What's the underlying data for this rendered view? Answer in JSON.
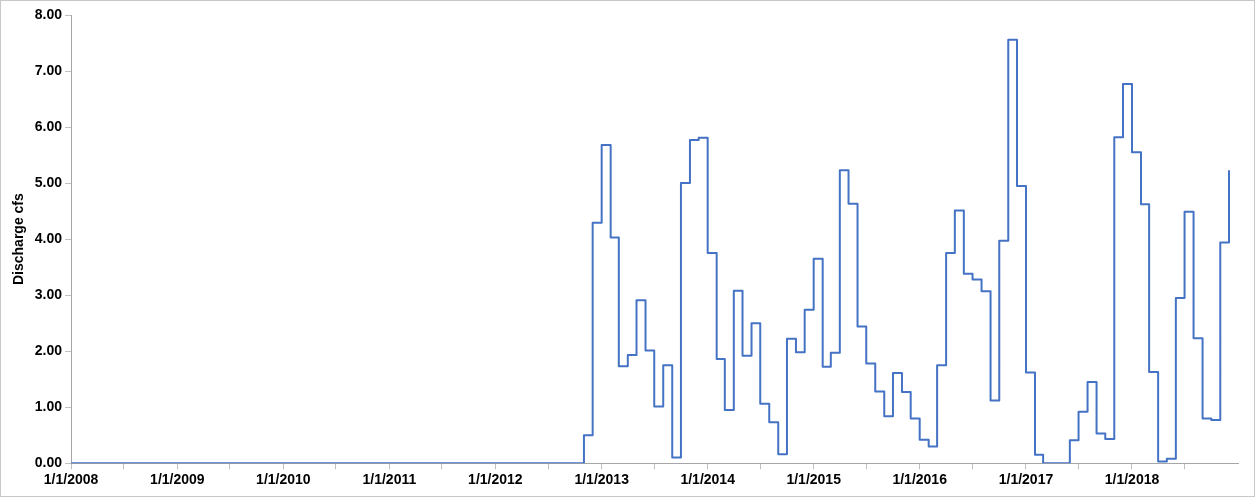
{
  "chart_data": {
    "type": "step",
    "ylabel": "Discharge cfs",
    "xlim": [
      "2008-01-01",
      "2019-01-01"
    ],
    "xticks": [
      {
        "value": "2008-01-01",
        "label": "1/1/2008"
      },
      {
        "value": "2008-07-01",
        "label": null
      },
      {
        "value": "2009-01-01",
        "label": "1/1/2009"
      },
      {
        "value": "2009-07-01",
        "label": null
      },
      {
        "value": "2010-01-01",
        "label": "1/1/2010"
      },
      {
        "value": "2010-07-01",
        "label": null
      },
      {
        "value": "2011-01-01",
        "label": "1/1/2011"
      },
      {
        "value": "2011-07-01",
        "label": null
      },
      {
        "value": "2012-01-01",
        "label": "1/1/2012"
      },
      {
        "value": "2012-07-01",
        "label": null
      },
      {
        "value": "2013-01-01",
        "label": "1/1/2013"
      },
      {
        "value": "2013-07-01",
        "label": null
      },
      {
        "value": "2014-01-01",
        "label": "1/1/2014"
      },
      {
        "value": "2014-07-01",
        "label": null
      },
      {
        "value": "2015-01-01",
        "label": "1/1/2015"
      },
      {
        "value": "2015-07-01",
        "label": null
      },
      {
        "value": "2016-01-01",
        "label": "1/1/2016"
      },
      {
        "value": "2016-07-01",
        "label": null
      },
      {
        "value": "2017-01-01",
        "label": "1/1/2017"
      },
      {
        "value": "2017-07-01",
        "label": null
      },
      {
        "value": "2018-01-01",
        "label": "1/1/2018"
      },
      {
        "value": "2018-07-01",
        "label": null
      }
    ],
    "ylim": [
      0,
      8
    ],
    "yticks": [
      {
        "value": 0,
        "label": "0.00"
      },
      {
        "value": 1,
        "label": "1.00"
      },
      {
        "value": 2,
        "label": "2.00"
      },
      {
        "value": 3,
        "label": "3.00"
      },
      {
        "value": 4,
        "label": "4.00"
      },
      {
        "value": 5,
        "label": "5.00"
      },
      {
        "value": 6,
        "label": "6.00"
      },
      {
        "value": 7,
        "label": "7.00"
      },
      {
        "value": 8,
        "label": "8.00"
      }
    ],
    "grid": false,
    "legend": false,
    "marker": "none",
    "line_style": "solid",
    "series": [
      {
        "color": "#4472c4",
        "x": [
          "2008-01",
          "2012-11",
          "2012-12",
          "2013-01",
          "2013-02",
          "2013-03",
          "2013-04",
          "2013-05",
          "2013-06",
          "2013-07",
          "2013-08",
          "2013-09",
          "2013-10",
          "2013-11",
          "2013-12",
          "2014-01",
          "2014-02",
          "2014-03",
          "2014-04",
          "2014-05",
          "2014-06",
          "2014-07",
          "2014-08",
          "2014-09",
          "2014-10",
          "2014-11",
          "2014-12",
          "2015-01",
          "2015-02",
          "2015-03",
          "2015-04",
          "2015-05",
          "2015-06",
          "2015-07",
          "2015-08",
          "2015-09",
          "2015-10",
          "2015-11",
          "2015-12",
          "2016-01",
          "2016-02",
          "2016-03",
          "2016-04",
          "2016-05",
          "2016-06",
          "2016-07",
          "2016-08",
          "2016-09",
          "2016-10",
          "2016-11",
          "2016-12",
          "2017-01",
          "2017-02",
          "2017-03",
          "2017-04",
          "2017-05",
          "2017-06",
          "2017-07",
          "2017-08",
          "2017-09",
          "2017-10",
          "2017-11",
          "2017-12",
          "2018-01",
          "2018-02",
          "2018-03",
          "2018-04",
          "2018-05",
          "2018-06",
          "2018-07",
          "2018-08",
          "2018-09",
          "2018-10",
          "2018-11",
          "2018-12"
        ],
        "values": [
          0,
          0.5,
          4.29,
          5.68,
          4.03,
          1.73,
          1.93,
          2.91,
          2.01,
          1.01,
          1.75,
          0.1,
          5.0,
          5.77,
          5.81,
          3.75,
          1.86,
          0.95,
          3.08,
          1.92,
          2.5,
          1.06,
          0.73,
          0.16,
          2.22,
          1.98,
          2.74,
          3.65,
          1.72,
          1.97,
          5.23,
          4.63,
          2.44,
          1.78,
          1.28,
          0.84,
          1.61,
          1.27,
          0.8,
          0.42,
          0.3,
          1.75,
          3.75,
          4.51,
          3.38,
          3.28,
          3.07,
          1.12,
          3.97,
          7.56,
          4.95,
          1.62,
          0.15,
          0,
          0,
          0,
          0.41,
          0.92,
          1.45,
          0.53,
          0.43,
          5.82,
          6.77,
          5.55,
          4.62,
          1.63,
          0.03,
          0.08,
          2.95,
          4.49,
          2.23,
          0.8,
          0.77,
          3.94,
          5.23
        ]
      }
    ]
  }
}
